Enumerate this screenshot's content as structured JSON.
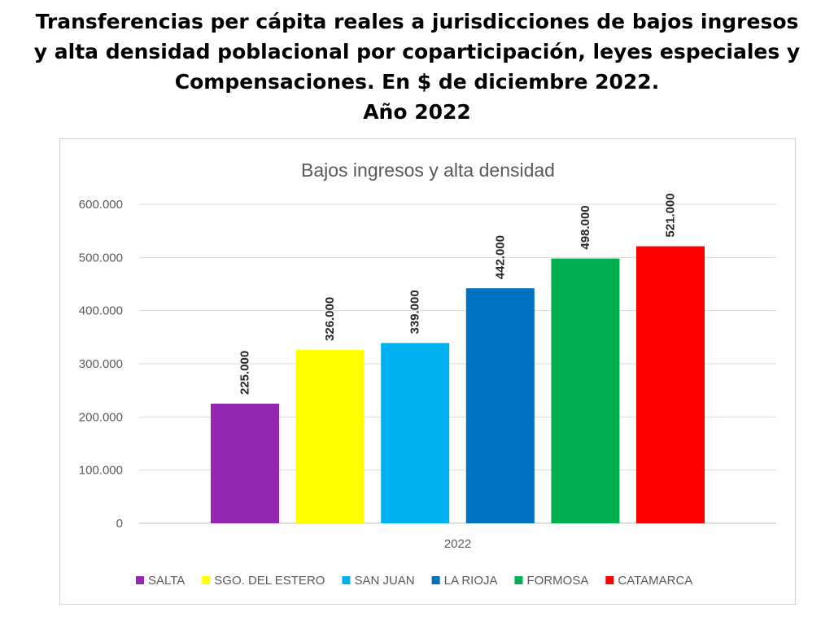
{
  "heading": {
    "line1": "Transferencias per cápita reales a jurisdicciones de bajos ingresos",
    "line2": "y alta densidad poblacional por coparticipación, leyes especiales y",
    "line3": "Compensaciones. En $ de diciembre 2022.",
    "line4": "Año 2022"
  },
  "chart_data": {
    "type": "bar",
    "title": "Bajos ingresos y alta densidad",
    "categories": [
      "2022"
    ],
    "xlabel": "",
    "ylabel": "",
    "ylim": [
      0,
      600000
    ],
    "yticks": [
      0,
      100000,
      200000,
      300000,
      400000,
      500000,
      600000
    ],
    "ytick_labels": [
      "0",
      "100.000",
      "200.000",
      "300.000",
      "400.000",
      "500.000",
      "600.000"
    ],
    "grid": true,
    "legend_position": "bottom",
    "series": [
      {
        "name": "SALTA",
        "values": [
          225000
        ],
        "label": "225.000",
        "color": "#9228b0"
      },
      {
        "name": "SGO. DEL ESTERO",
        "values": [
          326000
        ],
        "label": "326.000",
        "color": "#ffff00"
      },
      {
        "name": "SAN JUAN",
        "values": [
          339000
        ],
        "label": "339.000",
        "color": "#00b0f0"
      },
      {
        "name": "LA RIOJA",
        "values": [
          442000
        ],
        "label": "442.000",
        "color": "#0070c0"
      },
      {
        "name": "FORMOSA",
        "values": [
          498000
        ],
        "label": "498.000",
        "color": "#00b050"
      },
      {
        "name": "CATAMARCA",
        "values": [
          521000
        ],
        "label": "521.000",
        "color": "#ff0000"
      }
    ]
  }
}
